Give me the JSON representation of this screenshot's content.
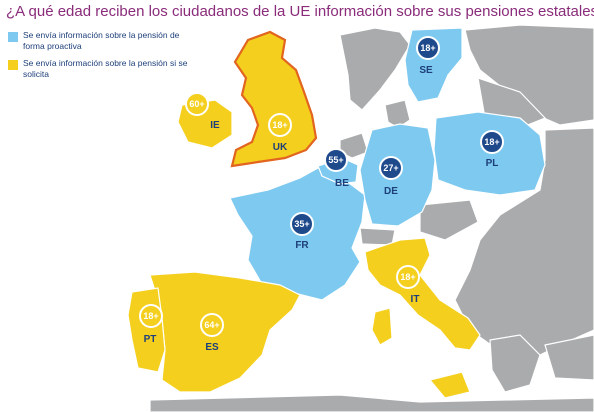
{
  "title": "¿A qué edad reciben los ciudadanos de la UE información sobre sus pensiones estatales?",
  "colors": {
    "proactive": "#7dc9ef",
    "on_request": "#f5cf1d",
    "other": "#a9abad",
    "sea": "#ffffff",
    "badge_dark": "#1e4a8c",
    "uk_outline": "#e2651f"
  },
  "legend": [
    {
      "label": "Se envía información sobre la pensión de forma proactiva",
      "color": "#7dc9ef"
    },
    {
      "label": "Se envía información sobre la pensión si se solicita",
      "color": "#f5cf1d"
    }
  ],
  "countries": [
    {
      "code": "SE",
      "age": "18+",
      "category": "proactive"
    },
    {
      "code": "IE",
      "age": "60+",
      "category": "on_request"
    },
    {
      "code": "UK",
      "age": "18+",
      "category": "on_request"
    },
    {
      "code": "BE",
      "age": "55+",
      "category": "proactive"
    },
    {
      "code": "DE",
      "age": "27+",
      "category": "proactive"
    },
    {
      "code": "PL",
      "age": "18+",
      "category": "proactive"
    },
    {
      "code": "FR",
      "age": "35+",
      "category": "proactive"
    },
    {
      "code": "IT",
      "age": "18+",
      "category": "on_request"
    },
    {
      "code": "PT",
      "age": "18+",
      "category": "on_request"
    },
    {
      "code": "ES",
      "age": "64+",
      "category": "on_request"
    }
  ]
}
